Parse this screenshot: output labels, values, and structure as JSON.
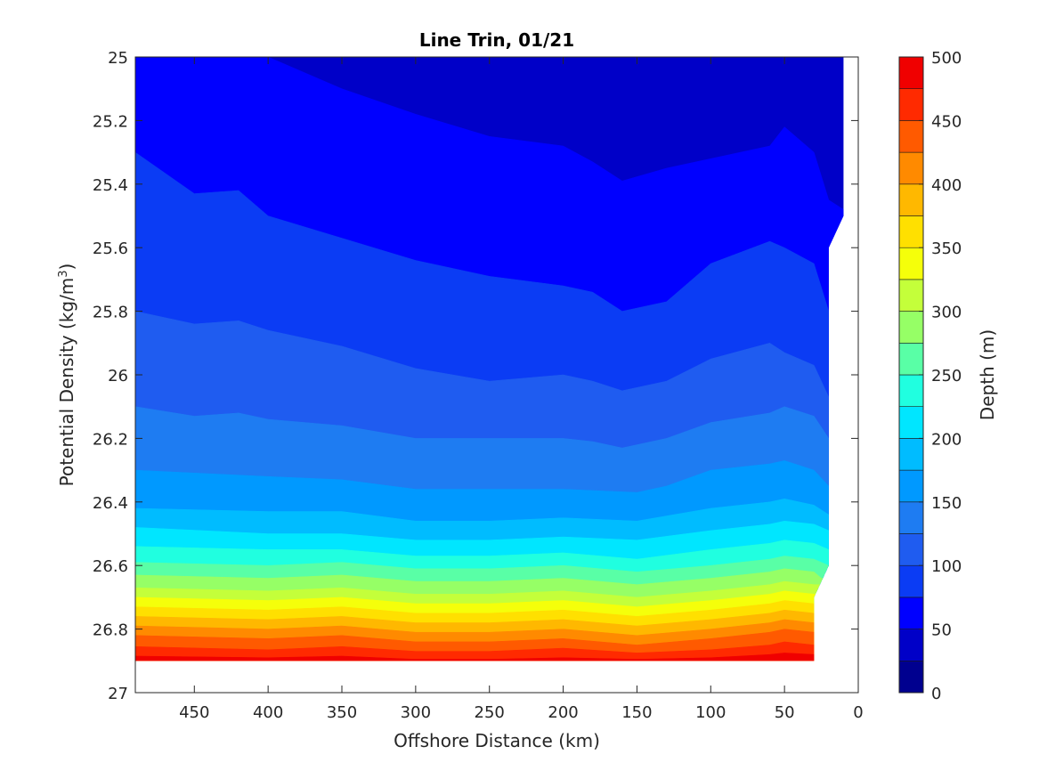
{
  "chart_data": {
    "type": "contour",
    "title": "Line Trin, 01/21",
    "xlabel": "Offshore Distance (km)",
    "ylabel_main": "Potential Density (kg/m",
    "ylabel_sup": "3",
    "ylabel_close": ")",
    "colorbar_label": "Depth (m)",
    "x_axis": {
      "min": 0,
      "max": 490,
      "reversed": true,
      "ticks": [
        450,
        400,
        350,
        300,
        250,
        200,
        150,
        100,
        50,
        0
      ]
    },
    "y_axis": {
      "min": 25,
      "max": 27,
      "reversed": true,
      "ticks": [
        25,
        25.2,
        25.4,
        25.6,
        25.8,
        26,
        26.2,
        26.4,
        26.6,
        26.8,
        27
      ],
      "tick_labels": [
        "25",
        "25.2",
        "25.4",
        "25.6",
        "25.8",
        "26",
        "26.2",
        "26.4",
        "26.6",
        "26.8",
        "27"
      ]
    },
    "colorbar": {
      "min": 0,
      "max": 500,
      "ticks": [
        0,
        50,
        100,
        150,
        200,
        250,
        300,
        350,
        400,
        450,
        500
      ],
      "levels": [
        0,
        25,
        50,
        75,
        100,
        125,
        150,
        175,
        200,
        225,
        250,
        275,
        300,
        325,
        350,
        375,
        400,
        425,
        450,
        475,
        500
      ],
      "colors": [
        "#00008f",
        "#0000c8",
        "#0000ff",
        "#0b3cf4",
        "#1f5cf0",
        "#1e7cf2",
        "#0099ff",
        "#00bcff",
        "#00e6ff",
        "#20ffe0",
        "#59ffa6",
        "#96ff66",
        "#c4ff3a",
        "#f5ff0a",
        "#ffe000",
        "#ffb800",
        "#ff8a00",
        "#ff5a00",
        "#ff2a00",
        "#f00000"
      ],
      "colormap": "jet"
    },
    "data_coverage": {
      "description": "Depth contours vs offshore distance and density; region with data spans x 490..~10 km, density 25..26.9",
      "boundary_x": [
        490,
        30,
        30,
        20,
        20,
        10,
        10
      ],
      "boundary_y": [
        26.9,
        26.9,
        26.7,
        26.6,
        25.6,
        25.5,
        25
      ]
    },
    "contour_lines": [
      {
        "level": 50,
        "x": [
          490,
          400,
          350,
          300,
          250,
          200,
          180,
          160,
          130,
          100,
          60,
          50,
          30,
          20,
          10
        ],
        "y": [
          25.0,
          25.0,
          25.1,
          25.18,
          25.25,
          25.28,
          25.33,
          25.39,
          25.35,
          25.32,
          25.28,
          25.22,
          25.3,
          25.45,
          25.48
        ]
      },
      {
        "level": 75,
        "x": [
          490,
          450,
          420,
          400,
          350,
          300,
          250,
          200,
          180,
          160,
          130,
          100,
          60,
          50,
          30,
          20,
          20
        ],
        "y": [
          25.3,
          25.43,
          25.42,
          25.5,
          25.57,
          25.64,
          25.69,
          25.72,
          25.74,
          25.8,
          25.77,
          25.65,
          25.58,
          25.6,
          25.65,
          25.8,
          25.8
        ]
      },
      {
        "level": 100,
        "x": [
          490,
          450,
          420,
          400,
          350,
          300,
          250,
          200,
          180,
          160,
          130,
          100,
          60,
          50,
          30,
          20
        ],
        "y": [
          25.8,
          25.84,
          25.83,
          25.86,
          25.91,
          25.98,
          26.02,
          26.0,
          26.02,
          26.05,
          26.02,
          25.95,
          25.9,
          25.93,
          25.97,
          26.07
        ]
      },
      {
        "level": 125,
        "x": [
          490,
          450,
          420,
          400,
          350,
          300,
          250,
          200,
          180,
          160,
          130,
          100,
          60,
          50,
          30,
          20
        ],
        "y": [
          26.1,
          26.13,
          26.12,
          26.14,
          26.16,
          26.2,
          26.2,
          26.2,
          26.21,
          26.23,
          26.2,
          26.15,
          26.12,
          26.1,
          26.13,
          26.2
        ]
      },
      {
        "level": 150,
        "x": [
          490,
          400,
          350,
          300,
          250,
          200,
          150,
          130,
          100,
          60,
          50,
          30,
          20
        ],
        "y": [
          26.3,
          26.32,
          26.33,
          26.36,
          26.36,
          26.36,
          26.37,
          26.35,
          26.3,
          26.28,
          26.27,
          26.3,
          26.35
        ]
      },
      {
        "level": 175,
        "x": [
          490,
          400,
          350,
          300,
          250,
          200,
          150,
          100,
          60,
          50,
          30,
          20
        ],
        "y": [
          26.42,
          26.43,
          26.43,
          26.46,
          26.46,
          26.45,
          26.46,
          26.42,
          26.4,
          26.39,
          26.41,
          26.44
        ]
      },
      {
        "level": 200,
        "x": [
          490,
          400,
          350,
          300,
          250,
          200,
          150,
          100,
          60,
          50,
          30,
          20
        ],
        "y": [
          26.48,
          26.5,
          26.5,
          26.52,
          26.52,
          26.51,
          26.52,
          26.49,
          26.47,
          26.46,
          26.47,
          26.49
        ]
      },
      {
        "level": 225,
        "x": [
          490,
          400,
          350,
          300,
          250,
          200,
          150,
          100,
          60,
          50,
          30,
          20
        ],
        "y": [
          26.54,
          26.55,
          26.55,
          26.57,
          26.57,
          26.56,
          26.58,
          26.55,
          26.53,
          26.52,
          26.53,
          26.55
        ]
      },
      {
        "level": 250,
        "x": [
          490,
          400,
          350,
          300,
          250,
          200,
          150,
          100,
          60,
          50,
          30,
          20
        ],
        "y": [
          26.59,
          26.6,
          26.59,
          26.61,
          26.61,
          26.6,
          26.62,
          26.6,
          26.58,
          26.57,
          26.58,
          26.6
        ]
      },
      {
        "level": 275,
        "x": [
          490,
          400,
          350,
          300,
          250,
          200,
          150,
          100,
          60,
          50,
          30,
          25
        ],
        "y": [
          26.63,
          26.64,
          26.63,
          26.65,
          26.65,
          26.64,
          26.66,
          26.64,
          26.62,
          26.61,
          26.62,
          26.64
        ]
      },
      {
        "level": 300,
        "x": [
          490,
          400,
          350,
          300,
          250,
          200,
          150,
          100,
          60,
          50,
          30
        ],
        "y": [
          26.67,
          26.68,
          26.67,
          26.69,
          26.69,
          26.68,
          26.7,
          26.68,
          26.66,
          26.65,
          26.66
        ]
      },
      {
        "level": 325,
        "x": [
          490,
          400,
          350,
          300,
          250,
          200,
          150,
          100,
          60,
          50,
          30
        ],
        "y": [
          26.7,
          26.71,
          26.7,
          26.72,
          26.72,
          26.71,
          26.73,
          26.71,
          26.69,
          26.68,
          26.69
        ]
      },
      {
        "level": 350,
        "x": [
          490,
          400,
          350,
          300,
          250,
          200,
          150,
          100,
          60,
          50,
          30
        ],
        "y": [
          26.73,
          26.74,
          26.73,
          26.75,
          26.75,
          26.74,
          26.76,
          26.74,
          26.72,
          26.71,
          26.72
        ]
      },
      {
        "level": 375,
        "x": [
          490,
          400,
          350,
          300,
          250,
          200,
          150,
          100,
          60,
          50,
          30
        ],
        "y": [
          26.76,
          26.77,
          26.76,
          26.78,
          26.78,
          26.77,
          26.79,
          26.77,
          26.75,
          26.74,
          26.75
        ]
      },
      {
        "level": 400,
        "x": [
          490,
          400,
          350,
          300,
          250,
          200,
          150,
          100,
          60,
          50,
          30
        ],
        "y": [
          26.79,
          26.8,
          26.79,
          26.81,
          26.81,
          26.8,
          26.82,
          26.8,
          26.78,
          26.77,
          26.78
        ]
      },
      {
        "level": 425,
        "x": [
          490,
          400,
          350,
          300,
          250,
          200,
          150,
          100,
          60,
          50,
          30
        ],
        "y": [
          26.82,
          26.83,
          26.82,
          26.84,
          26.84,
          26.83,
          26.85,
          26.83,
          26.81,
          26.8,
          26.81
        ]
      },
      {
        "level": 450,
        "x": [
          490,
          400,
          350,
          300,
          250,
          200,
          150,
          100,
          60,
          50,
          30
        ],
        "y": [
          26.855,
          26.865,
          26.855,
          26.87,
          26.87,
          26.86,
          26.875,
          26.865,
          26.85,
          26.84,
          26.85
        ]
      },
      {
        "level": 475,
        "x": [
          490,
          400,
          350,
          300,
          250,
          200,
          150,
          100,
          60,
          50,
          30
        ],
        "y": [
          26.885,
          26.89,
          26.885,
          26.895,
          26.895,
          26.89,
          26.895,
          26.89,
          26.88,
          26.875,
          26.88
        ]
      }
    ]
  }
}
